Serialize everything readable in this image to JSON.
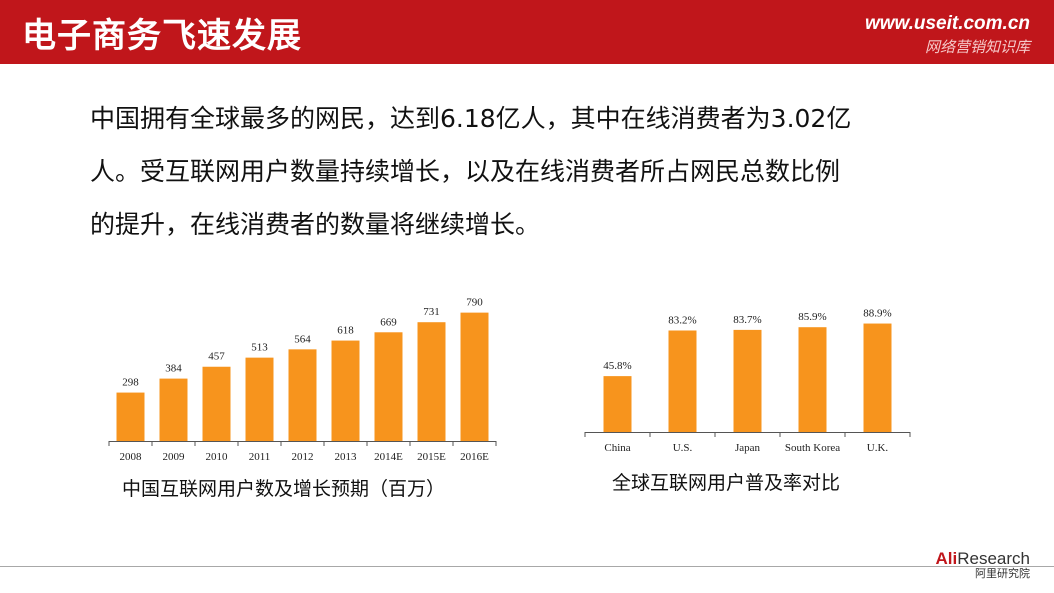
{
  "header": {
    "title": "电子商务飞速发展",
    "site_url": "www.useit.com.cn",
    "site_name": "网络营销知识库"
  },
  "paragraph": {
    "lines": [
      "中国拥有全球最多的网民，达到6.18亿人，其中在线消费者为3.02亿",
      "人。受互联网用户数量持续增长，以及在线消费者所占网民总数比例",
      "的提升，在线消费者的数量将继续增长。"
    ]
  },
  "colors": {
    "bar": "#f7941d",
    "header_bg": "#c0161b",
    "axis": "#555555"
  },
  "chart_data": [
    {
      "type": "bar",
      "title": "中国互联网用户数及增长预期（百万）",
      "categories": [
        "2008",
        "2009",
        "2010",
        "2011",
        "2012",
        "2013",
        "2014E",
        "2015E",
        "2016E"
      ],
      "values": [
        298,
        384,
        457,
        513,
        564,
        618,
        669,
        731,
        790
      ],
      "data_labels": [
        "298",
        "384",
        "457",
        "513",
        "564",
        "618",
        "669",
        "731",
        "790"
      ],
      "ylim": [
        0,
        800
      ],
      "grid": false,
      "legend": false
    },
    {
      "type": "bar",
      "title": "全球互联网用户普及率对比",
      "categories": [
        "China",
        "U.S.",
        "Japan",
        "South Korea",
        "U.K."
      ],
      "values": [
        45.8,
        83.2,
        83.7,
        85.9,
        88.9
      ],
      "data_labels": [
        "45.8%",
        "83.2%",
        "83.7%",
        "85.9%",
        "88.9%"
      ],
      "ylim": [
        0,
        100
      ],
      "grid": false,
      "legend": false
    }
  ],
  "logo": {
    "brand_ali": "Ali",
    "brand_research": "Research",
    "subtitle": "阿里研究院"
  }
}
